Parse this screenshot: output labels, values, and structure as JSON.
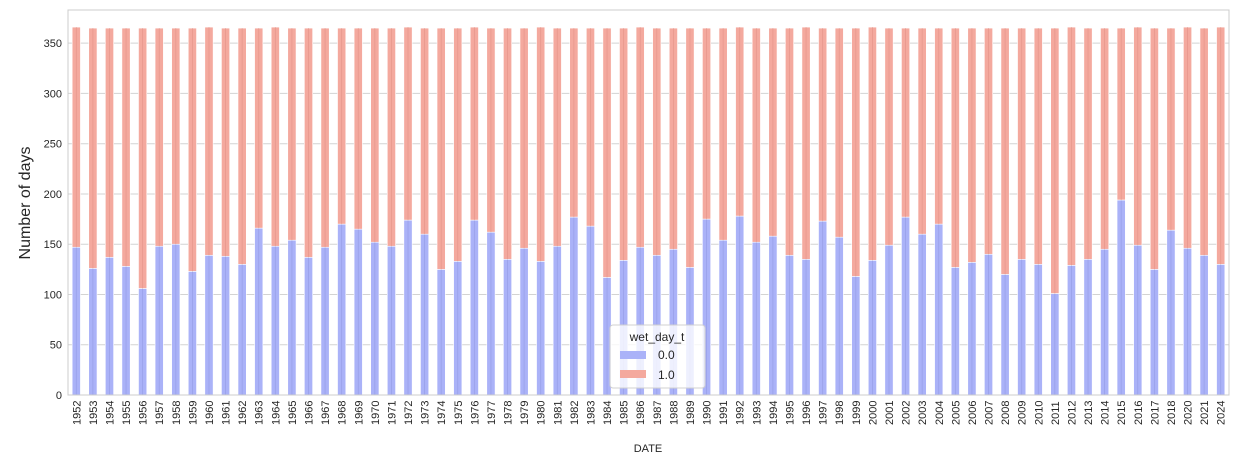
{
  "chart_data": {
    "type": "bar",
    "stacked": true,
    "xlabel": "DATE",
    "ylabel": "Number of days",
    "ylim": [
      0,
      383
    ],
    "yticks": [
      0,
      50,
      100,
      150,
      200,
      250,
      300,
      350
    ],
    "grid": true,
    "legend": {
      "title": "wet_day_t",
      "placement": "bottom-center"
    },
    "categories": [
      "1952",
      "1953",
      "1954",
      "1955",
      "1956",
      "1957",
      "1958",
      "1959",
      "1960",
      "1961",
      "1962",
      "1963",
      "1964",
      "1965",
      "1966",
      "1967",
      "1968",
      "1969",
      "1970",
      "1971",
      "1972",
      "1973",
      "1974",
      "1975",
      "1976",
      "1977",
      "1978",
      "1979",
      "1980",
      "1981",
      "1982",
      "1983",
      "1984",
      "1985",
      "1986",
      "1987",
      "1988",
      "1989",
      "1990",
      "1991",
      "1992",
      "1993",
      "1994",
      "1995",
      "1996",
      "1997",
      "1998",
      "1999",
      "2000",
      "2001",
      "2002",
      "2003",
      "2004",
      "2005",
      "2006",
      "2007",
      "2008",
      "2009",
      "2010",
      "2011",
      "2012",
      "2013",
      "2014",
      "2015",
      "2016",
      "2017",
      "2018",
      "2020",
      "2021",
      "2024"
    ],
    "series": [
      {
        "name": "0.0",
        "color": "#aab2f8",
        "values": [
          147,
          126,
          137,
          128,
          106,
          148,
          150,
          123,
          139,
          138,
          130,
          166,
          148,
          154,
          137,
          147,
          170,
          165,
          152,
          148,
          174,
          160,
          125,
          133,
          174,
          162,
          135,
          146,
          133,
          148,
          177,
          168,
          117,
          134,
          147,
          139,
          145,
          127,
          175,
          154,
          178,
          152,
          158,
          139,
          135,
          173,
          157,
          118,
          134,
          149,
          177,
          160,
          170,
          127,
          132,
          140,
          120,
          135,
          130,
          101,
          129,
          135,
          145,
          194,
          149,
          125,
          164,
          146,
          139,
          130
        ]
      },
      {
        "name": "1.0",
        "color": "#f4a99e",
        "values": [
          219,
          239,
          228,
          237,
          259,
          217,
          215,
          242,
          227,
          227,
          235,
          199,
          218,
          211,
          228,
          218,
          195,
          200,
          213,
          217,
          192,
          205,
          240,
          232,
          192,
          203,
          230,
          219,
          233,
          217,
          188,
          197,
          248,
          231,
          219,
          226,
          220,
          238,
          190,
          211,
          188,
          213,
          207,
          226,
          231,
          192,
          208,
          247,
          232,
          216,
          188,
          205,
          195,
          238,
          233,
          225,
          245,
          230,
          235,
          264,
          237,
          230,
          220,
          171,
          217,
          240,
          201,
          220,
          226,
          236
        ]
      }
    ]
  }
}
